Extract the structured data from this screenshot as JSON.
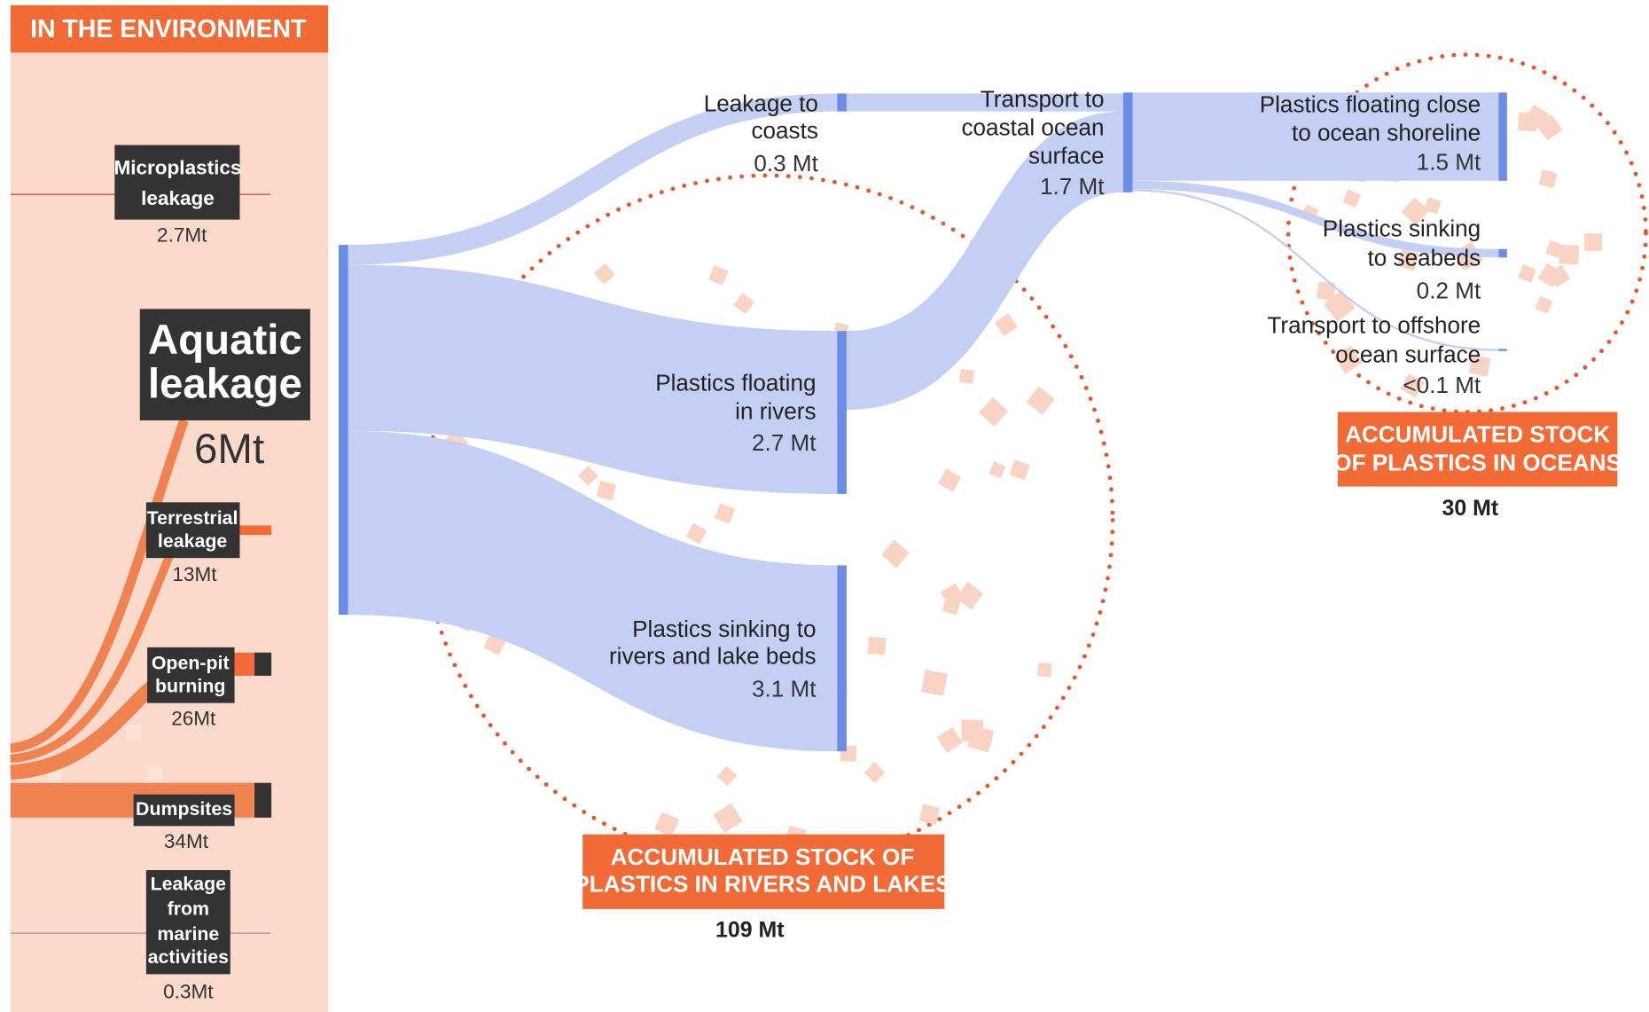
{
  "left": {
    "title": "IN THE ENVIRONMENT",
    "items": [
      {
        "label": [
          "Microplastics",
          "leakage"
        ],
        "value": "2.7Mt"
      },
      {
        "label": [
          "Aquatic",
          "leakage"
        ],
        "value": "6Mt"
      },
      {
        "label": [
          "Terrestrial",
          "leakage"
        ],
        "value": "13Mt"
      },
      {
        "label": [
          "Open-pit",
          "burning"
        ],
        "value": "26Mt"
      },
      {
        "label": [
          "Dumpsites"
        ],
        "value": "34Mt"
      },
      {
        "label": [
          "Leakage",
          "from",
          "marine",
          "activities"
        ],
        "value": "0.3Mt"
      }
    ]
  },
  "nodes": [
    {
      "label": [
        "Leakage to",
        "coasts"
      ],
      "value": "0.3 Mt"
    },
    {
      "label": [
        "Plastics floating",
        "in rivers"
      ],
      "value": "2.7 Mt"
    },
    {
      "label": [
        "Plastics sinking to",
        "rivers and lake beds"
      ],
      "value": "3.1 Mt"
    },
    {
      "label": [
        "Transport to",
        "coastal ocean",
        "surface"
      ],
      "value": "1.7 Mt"
    },
    {
      "label": [
        "Plastics floating close",
        "to ocean shoreline"
      ],
      "value": "1.5 Mt"
    },
    {
      "label": [
        "Plastics sinking",
        "to seabeds"
      ],
      "value": "0.2 Mt"
    },
    {
      "label": [
        "Transport to offshore",
        "ocean surface"
      ],
      "value": "<0.1 Mt"
    }
  ],
  "stocks": [
    {
      "label": [
        "ACCUMULATED STOCK OF",
        "PLASTICS IN RIVERS AND LAKES"
      ],
      "value": "109 Mt"
    },
    {
      "label": [
        "ACCUMULATED STOCK",
        "OF PLASTICS IN OCEANS"
      ],
      "value": "30 Mt"
    }
  ]
}
